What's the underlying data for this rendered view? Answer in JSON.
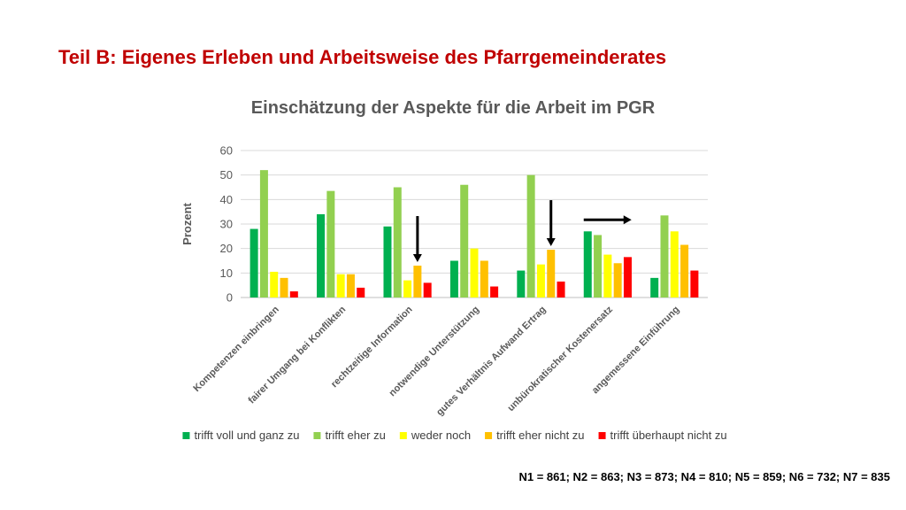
{
  "slide": {
    "title": "Teil B: Eigenes Erleben und Arbeitsweise des Pfarrgemeinderates",
    "footnote": "N1 = 861; N2 = 863; N3 = 873; N4 = 810; N5 = 859; N6 = 732; N7 = 835"
  },
  "arrows": [
    {
      "direction": "down",
      "category_index": 2,
      "series_index": 3
    },
    {
      "direction": "down",
      "category_index": 4,
      "series_index": 3
    },
    {
      "direction": "right",
      "category_index": 5,
      "series_index": 0
    }
  ],
  "chart_data": {
    "type": "bar",
    "title": "Einschätzung der Aspekte für die Arbeit im PGR",
    "xlabel": "",
    "ylabel": "Prozent",
    "ylim": [
      0,
      60
    ],
    "yticks": [
      0,
      10,
      20,
      30,
      40,
      50,
      60
    ],
    "grid": true,
    "legend_position": "bottom",
    "categories": [
      "Kompetenzen einbringen",
      "fairer Umgang bei Konflikten",
      "rechtzeitige Information",
      "notwendige Unterstützung",
      "gutes Verhältnis Aufwand Ertrag",
      "unbürokratischer Kostenersatz",
      "angemessene Einführung"
    ],
    "series": [
      {
        "name": "trifft voll und ganz zu",
        "color": "#00b050",
        "values": [
          28,
          34,
          29,
          15,
          11,
          27,
          8
        ]
      },
      {
        "name": "trifft eher zu",
        "color": "#92d050",
        "values": [
          52,
          43.5,
          45,
          46,
          50,
          25.5,
          33.5
        ]
      },
      {
        "name": "weder noch",
        "color": "#ffff00",
        "values": [
          10.5,
          9.5,
          7,
          20,
          13.5,
          17.5,
          27
        ]
      },
      {
        "name": "trifft eher nicht zu",
        "color": "#ffc000",
        "values": [
          8,
          9.5,
          13,
          15,
          19.5,
          14,
          21.5
        ]
      },
      {
        "name": "trifft überhaupt nicht zu",
        "color": "#ff0000",
        "values": [
          2.5,
          4,
          6,
          4.5,
          6.5,
          16.5,
          11
        ]
      }
    ]
  }
}
